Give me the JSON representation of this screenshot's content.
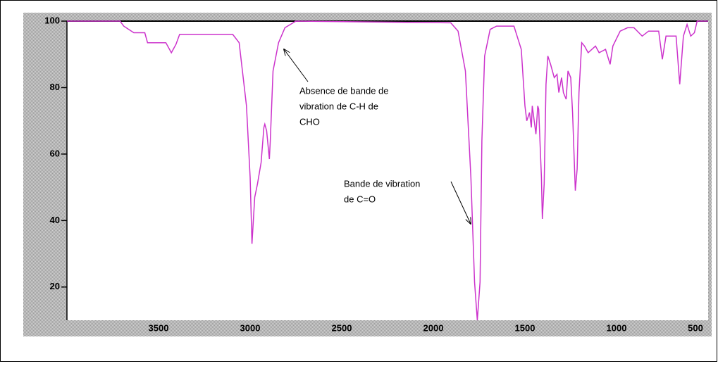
{
  "chart_data": {
    "type": "line",
    "x": [
      4000,
      3710,
      3690,
      3635,
      3575,
      3560,
      3460,
      3430,
      3405,
      3385,
      3095,
      3060,
      3020,
      3000,
      2990,
      2975,
      2960,
      2940,
      2925,
      2920,
      2910,
      2895,
      2890,
      2875,
      2845,
      2810,
      2750,
      1905,
      1865,
      1825,
      1795,
      1775,
      1760,
      1745,
      1735,
      1720,
      1690,
      1655,
      1560,
      1520,
      1500,
      1490,
      1475,
      1465,
      1460,
      1440,
      1430,
      1425,
      1410,
      1405,
      1395,
      1385,
      1375,
      1360,
      1340,
      1325,
      1315,
      1300,
      1290,
      1275,
      1265,
      1250,
      1240,
      1225,
      1215,
      1205,
      1190,
      1175,
      1155,
      1115,
      1095,
      1060,
      1035,
      1020,
      980,
      940,
      905,
      860,
      825,
      770,
      750,
      730,
      675,
      655,
      635,
      615,
      595,
      575,
      560,
      500
    ],
    "values": [
      100,
      100,
      98.5,
      96.5,
      96.5,
      93.5,
      93.5,
      90.5,
      93,
      96,
      96,
      93.5,
      74.5,
      53,
      33,
      47,
      51,
      57.5,
      68,
      69,
      67,
      58.5,
      64,
      85,
      93.5,
      98,
      100,
      99.5,
      97,
      85,
      53,
      21.5,
      10,
      21.5,
      64,
      89.5,
      97.5,
      98.5,
      98.5,
      91.5,
      74.5,
      70,
      72.5,
      68,
      74.5,
      66,
      74.5,
      73.5,
      53,
      40.5,
      51,
      81,
      89.5,
      87,
      83,
      84,
      78.5,
      83,
      78.5,
      76.5,
      85,
      83,
      72.5,
      49,
      55.5,
      78.5,
      93.5,
      92.5,
      90.5,
      92.5,
      90.5,
      91.5,
      87,
      92.5,
      97,
      98,
      98,
      95.5,
      97,
      97,
      88.5,
      95.5,
      95.5,
      81,
      95.5,
      99,
      95.5,
      96.5,
      100,
      100
    ],
    "color": "#cc33cc",
    "xlim": [
      4000,
      500
    ],
    "xticks": [
      3500,
      3000,
      2500,
      2000,
      1500,
      1000,
      500
    ],
    "ylim": [
      10,
      100
    ],
    "yticks": [
      20,
      40,
      60,
      80,
      100
    ],
    "annotations": [
      {
        "lines": [
          "Absence de bande de",
          "vibration de C-H de",
          "CHO"
        ],
        "x": 2810
      },
      {
        "lines": [
          "Bande de vibration",
          "de C=O"
        ],
        "x": 1760
      }
    ]
  }
}
